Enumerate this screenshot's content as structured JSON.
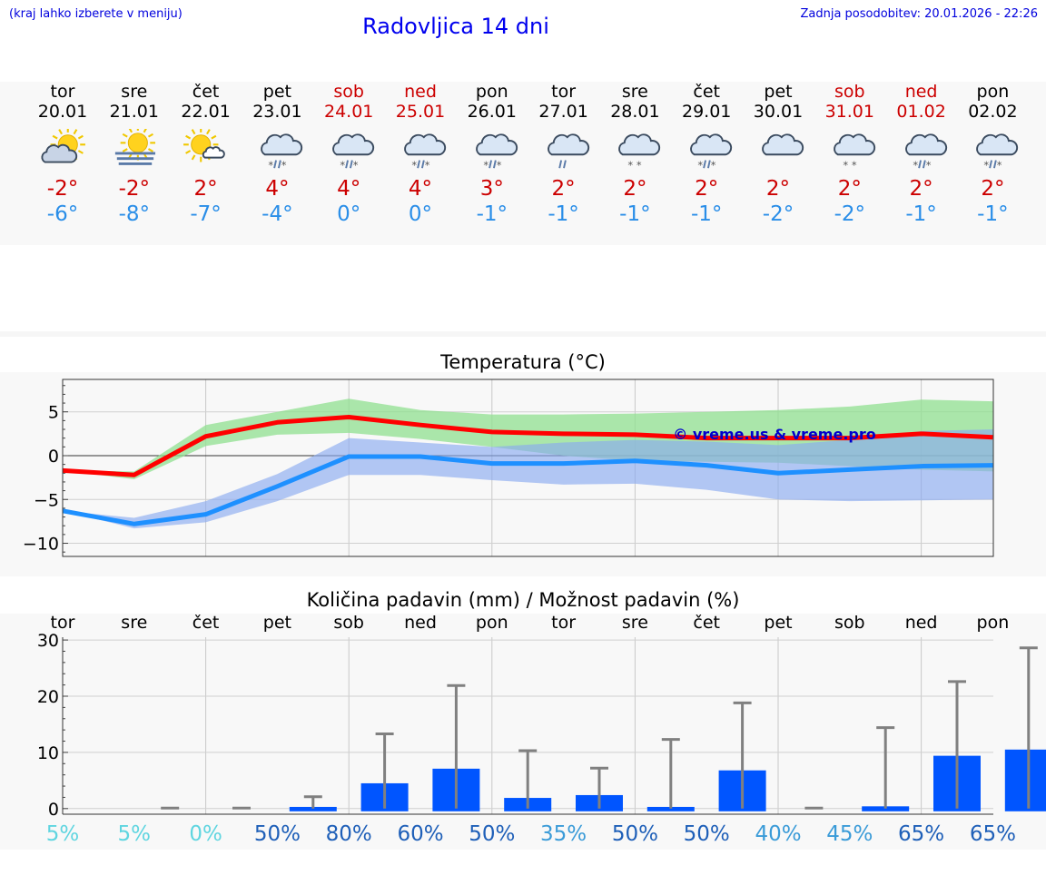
{
  "header": {
    "hint": "(kraj lahko izberete v meniju)",
    "title": "Radovljica 14 dni",
    "updated": "Zadnja posodobitev: 20.01.2026 - 22:26"
  },
  "days": [
    {
      "name": "tor",
      "date": "20.01",
      "icon": "sun-cloud-icon",
      "max": "-2°",
      "min": "-6°",
      "weekend": false
    },
    {
      "name": "sre",
      "date": "21.01",
      "icon": "sun-fog-icon",
      "max": "-2°",
      "min": "-8°",
      "weekend": false
    },
    {
      "name": "čet",
      "date": "22.01",
      "icon": "sun-small-cloud-icon",
      "max": "2°",
      "min": "-7°",
      "weekend": false
    },
    {
      "name": "pet",
      "date": "23.01",
      "icon": "cloud-rain-snow-icon",
      "max": "4°",
      "min": "-4°",
      "weekend": false
    },
    {
      "name": "sob",
      "date": "24.01",
      "icon": "cloud-rain-snow-icon",
      "max": "4°",
      "min": "0°",
      "weekend": true
    },
    {
      "name": "ned",
      "date": "25.01",
      "icon": "cloud-rain-snow-icon",
      "max": "4°",
      "min": "0°",
      "weekend": true
    },
    {
      "name": "pon",
      "date": "26.01",
      "icon": "cloud-rain-snow-icon",
      "max": "3°",
      "min": "-1°",
      "weekend": false
    },
    {
      "name": "tor",
      "date": "27.01",
      "icon": "cloud-rain-icon",
      "max": "2°",
      "min": "-1°",
      "weekend": false
    },
    {
      "name": "sre",
      "date": "28.01",
      "icon": "cloud-snow-icon",
      "max": "2°",
      "min": "-1°",
      "weekend": false
    },
    {
      "name": "čet",
      "date": "29.01",
      "icon": "cloud-rain-snow-icon",
      "max": "2°",
      "min": "-1°",
      "weekend": false
    },
    {
      "name": "pet",
      "date": "30.01",
      "icon": "cloud-icon",
      "max": "2°",
      "min": "-2°",
      "weekend": false
    },
    {
      "name": "sob",
      "date": "31.01",
      "icon": "cloud-snow-icon",
      "max": "2°",
      "min": "-2°",
      "weekend": true
    },
    {
      "name": "ned",
      "date": "01.02",
      "icon": "cloud-rain-snow-icon",
      "max": "2°",
      "min": "-1°",
      "weekend": true
    },
    {
      "name": "pon",
      "date": "02.02",
      "icon": "cloud-rain-snow-icon",
      "max": "2°",
      "min": "-1°",
      "weekend": false
    }
  ],
  "chart_data": [
    {
      "type": "line",
      "title": "Temperatura (°C)",
      "watermark": "© vreme.us & vreme.pro",
      "x": [
        0,
        1,
        2,
        3,
        4,
        5,
        6,
        7,
        8,
        9,
        10,
        11,
        12,
        13
      ],
      "ylim": [
        -11.5,
        8.7
      ],
      "yticks": [
        5,
        0,
        -5,
        -10
      ],
      "ytick_labels": [
        "5",
        "0",
        "−5",
        "−10"
      ],
      "series": [
        {
          "name": "max",
          "color": "#ff0000",
          "values": [
            -1.7,
            -2.2,
            2.2,
            3.8,
            4.4,
            3.5,
            2.7,
            2.5,
            2.4,
            2.0,
            2.0,
            2.0,
            2.5,
            2.1
          ]
        },
        {
          "name": "min",
          "color": "#1e90ff",
          "values": [
            -6.3,
            -7.8,
            -6.7,
            -3.5,
            -0.1,
            -0.1,
            -0.9,
            -0.9,
            -0.6,
            -1.1,
            -2.0,
            -1.6,
            -1.2,
            -1.1
          ]
        }
      ],
      "bands": [
        {
          "name": "max-range",
          "color": "#90e090",
          "opacity": 0.75,
          "upper": [
            -1.7,
            -1.8,
            3.5,
            5.0,
            6.5,
            5.2,
            4.7,
            4.7,
            4.8,
            5.0,
            5.2,
            5.6,
            6.4,
            6.2
          ],
          "lower": [
            -1.7,
            -2.7,
            1.1,
            2.4,
            2.6,
            1.9,
            1.0,
            0.0,
            -0.6,
            -0.7,
            -0.8,
            -1.2,
            -1.6,
            -1.8
          ]
        },
        {
          "name": "min-range",
          "color": "#8aaaf0",
          "opacity": 0.65,
          "upper": [
            -6.3,
            -7.1,
            -5.2,
            -2.1,
            2.0,
            1.5,
            1.0,
            1.5,
            1.8,
            1.6,
            1.2,
            1.8,
            2.8,
            3.0
          ],
          "lower": [
            -6.3,
            -8.3,
            -7.6,
            -5.2,
            -2.2,
            -2.2,
            -2.8,
            -3.3,
            -3.2,
            -3.9,
            -5.0,
            -5.2,
            -5.1,
            -5.0
          ]
        }
      ]
    },
    {
      "type": "bar",
      "title": "Količina padavin (mm) / Možnost padavin (%)",
      "categories": [
        "tor",
        "sre",
        "čet",
        "pet",
        "sob",
        "ned",
        "pon",
        "tor",
        "sre",
        "čet",
        "pet",
        "sob",
        "ned",
        "pon"
      ],
      "ylim": [
        -1,
        30.5
      ],
      "yticks": [
        30,
        20,
        10,
        0
      ],
      "values": [
        0,
        0,
        0,
        0.3,
        4.5,
        7.1,
        1.9,
        2.4,
        0.3,
        6.8,
        0,
        0.4,
        9.4,
        10.5
      ],
      "error_max": [
        0,
        0.1,
        0.1,
        2.1,
        13.3,
        21.9,
        10.3,
        7.2,
        12.3,
        18.8,
        0.1,
        14.4,
        22.6,
        28.6
      ],
      "probability": [
        "5%",
        "5%",
        "0%",
        "50%",
        "80%",
        "60%",
        "50%",
        "35%",
        "50%",
        "50%",
        "40%",
        "45%",
        "65%",
        "65%"
      ],
      "probability_colors": [
        "#5fd5e0",
        "#5fd5e0",
        "#5fd5e0",
        "#1e5fb8",
        "#1e5fb8",
        "#1e5fb8",
        "#1e5fb8",
        "#3a9bd8",
        "#1e5fb8",
        "#1e5fb8",
        "#3a9bd8",
        "#3a9bd8",
        "#1e5fb8",
        "#1e5fb8"
      ],
      "bar_color": "#0055ff",
      "error_color": "#808080"
    }
  ]
}
